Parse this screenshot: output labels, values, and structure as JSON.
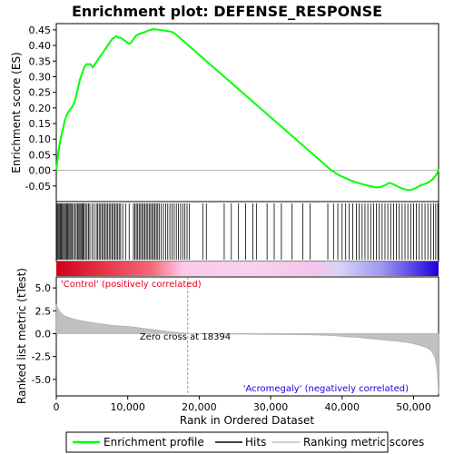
{
  "chart_data": {
    "type": "line",
    "title": "Enrichment plot: DEFENSE_RESPONSE",
    "panels": {
      "enrichment": {
        "ylabel": "Enrichment score (ES)",
        "ylim": [
          -0.1,
          0.47
        ],
        "yticks": [
          -0.05,
          0.0,
          0.05,
          0.1,
          0.15,
          0.2,
          0.25,
          0.3,
          0.35,
          0.4,
          0.45
        ],
        "ytick_labels": [
          "-0.05",
          "0.00",
          "0.05",
          "0.10",
          "0.15",
          "0.20",
          "0.25",
          "0.30",
          "0.35",
          "0.40",
          "0.45"
        ],
        "series": [
          {
            "name": "Enrichment profile",
            "color": "#00ff00",
            "x": [
              0,
              300,
              600,
              900,
              1200,
              1500,
              1800,
              2100,
              2400,
              2700,
              3000,
              3300,
              3600,
              3900,
              4200,
              4500,
              4800,
              5100,
              5400,
              5700,
              6000,
              6300,
              6600,
              6900,
              7200,
              7500,
              7800,
              8100,
              8400,
              8700,
              9000,
              9300,
              9600,
              9900,
              10200,
              10500,
              10800,
              11100,
              11400,
              11700,
              12000,
              12300,
              12600,
              12900,
              13200,
              13500,
              13800,
              14100,
              14400,
              14700,
              15000,
              15300,
              15600,
              15900,
              16200,
              16500,
              17000,
              18000,
              20000,
              22000,
              24000,
              26000,
              28000,
              30000,
              32000,
              34000,
              36000,
              37500,
              38500,
              39500,
              40500,
              41500,
              42500,
              43500,
              44200,
              44800,
              45400,
              46000,
              46600,
              47200,
              47800,
              48400,
              49000,
              49600,
              50200,
              50800,
              51400,
              52000,
              52600,
              53000,
              53300,
              53500
            ],
            "y": [
              0.0,
              0.06,
              0.1,
              0.13,
              0.16,
              0.18,
              0.19,
              0.2,
              0.21,
              0.23,
              0.26,
              0.29,
              0.31,
              0.33,
              0.34,
              0.34,
              0.34,
              0.33,
              0.34,
              0.35,
              0.36,
              0.37,
              0.38,
              0.39,
              0.4,
              0.41,
              0.42,
              0.425,
              0.43,
              0.425,
              0.425,
              0.42,
              0.415,
              0.41,
              0.405,
              0.41,
              0.42,
              0.43,
              0.435,
              0.438,
              0.44,
              0.442,
              0.445,
              0.448,
              0.45,
              0.452,
              0.452,
              0.451,
              0.45,
              0.449,
              0.448,
              0.447,
              0.446,
              0.445,
              0.443,
              0.44,
              0.43,
              0.41,
              0.37,
              0.33,
              0.29,
              0.25,
              0.21,
              0.17,
              0.13,
              0.09,
              0.05,
              0.02,
              0.0,
              -0.015,
              -0.025,
              -0.035,
              -0.042,
              -0.048,
              -0.052,
              -0.055,
              -0.053,
              -0.048,
              -0.04,
              -0.045,
              -0.052,
              -0.058,
              -0.062,
              -0.063,
              -0.058,
              -0.05,
              -0.045,
              -0.04,
              -0.03,
              -0.02,
              -0.01,
              0.005
            ]
          }
        ]
      },
      "hits": {
        "series": [
          {
            "name": "Hits",
            "color": "#000000",
            "positions": [
              50,
              150,
              280,
              420,
              560,
              700,
              850,
              1000,
              1150,
              1300,
              1450,
              1600,
              1750,
              1900,
              2050,
              2200,
              2400,
              2600,
              2800,
              3000,
              3150,
              3300,
              3450,
              3600,
              3750,
              3900,
              4100,
              4300,
              4500,
              4700,
              5000,
              5300,
              5600,
              5800,
              6000,
              6200,
              6400,
              6600,
              6800,
              7000,
              7200,
              7400,
              7600,
              7800,
              8000,
              8200,
              8400,
              8600,
              8800,
              9000,
              9300,
              9700,
              10200,
              10800,
              11000,
              11200,
              11400,
              11600,
              11800,
              12000,
              12200,
              12400,
              12600,
              12800,
              13000,
              13200,
              13400,
              13600,
              13800,
              14000,
              14200,
              14400,
              14700,
              15000,
              15300,
              15600,
              15900,
              16200,
              16500,
              16800,
              17100,
              17400,
              17700,
              18000,
              18300,
              18600,
              20500,
              21000,
              23500,
              24500,
              25500,
              26500,
              27500,
              28000,
              29500,
              30500,
              31500,
              33000,
              34500,
              35500,
              38000,
              38800,
              39400,
              40000,
              40500,
              41000,
              41500,
              42000,
              42400,
              42800,
              43200,
              43600,
              44000,
              44400,
              44800,
              45200,
              45600,
              46000,
              46400,
              46800,
              47200,
              47600,
              48000,
              48400,
              48800,
              49200,
              49600,
              50000,
              50400,
              50800,
              51200,
              51600,
              52000,
              52400,
              52800,
              53100,
              53400
            ]
          }
        ]
      },
      "ranked": {
        "ylabel": "Ranked list metric (tTest)",
        "xlabel": "Rank in Ordered Dataset",
        "ylim": [
          -6.8,
          6.2
        ],
        "yticks": [
          -5.0,
          -2.5,
          0.0,
          2.5,
          5.0
        ],
        "ytick_labels": [
          "-5.0",
          "-2.5",
          "0.0",
          "2.5",
          "5.0"
        ],
        "xlim": [
          0,
          53500
        ],
        "xticks": [
          0,
          10000,
          20000,
          30000,
          40000,
          50000
        ],
        "xtick_labels": [
          "0",
          "10,000",
          "20,000",
          "30,000",
          "40,000",
          "50,000"
        ],
        "series": [
          {
            "name": "Ranking metric scores",
            "color": "#c0c0c0",
            "x": [
              0,
              200,
              500,
              1000,
              2000,
              3000,
              4000,
              6000,
              8000,
              10000,
              12000,
              14000,
              16000,
              18000,
              18394,
              20000,
              25000,
              30000,
              35000,
              38000,
              40000,
              42000,
              44000,
              46000,
              48000,
              49000,
              50000,
              51000,
              52000,
              52500,
              53000,
              53300,
              53500
            ],
            "y": [
              3.2,
              2.8,
              2.4,
              2.0,
              1.7,
              1.5,
              1.35,
              1.1,
              0.9,
              0.8,
              0.6,
              0.4,
              0.2,
              0.05,
              0.0,
              -0.02,
              -0.05,
              -0.08,
              -0.12,
              -0.18,
              -0.3,
              -0.4,
              -0.55,
              -0.7,
              -0.85,
              -0.95,
              -1.1,
              -1.3,
              -1.6,
              -1.9,
              -2.6,
              -4.0,
              -6.6
            ]
          }
        ],
        "annotations": {
          "zero_cross": "Zero cross at 18394",
          "zero_cross_rank": 18394,
          "positive_label": "'Control' (positively correlated)",
          "negative_label": "'Acromegaly' (negatively correlated)"
        }
      }
    },
    "legend": {
      "placement": "bottom",
      "entries": [
        {
          "name": "Enrichment profile",
          "color": "#00ff00"
        },
        {
          "name": "Hits",
          "color": "#000000"
        },
        {
          "name": "Ranking metric scores",
          "color": "#c0c0c0"
        }
      ]
    },
    "colors": {
      "positive": "#e8001c",
      "negative": "#1a00e0",
      "neutral": "#ffffff"
    }
  }
}
